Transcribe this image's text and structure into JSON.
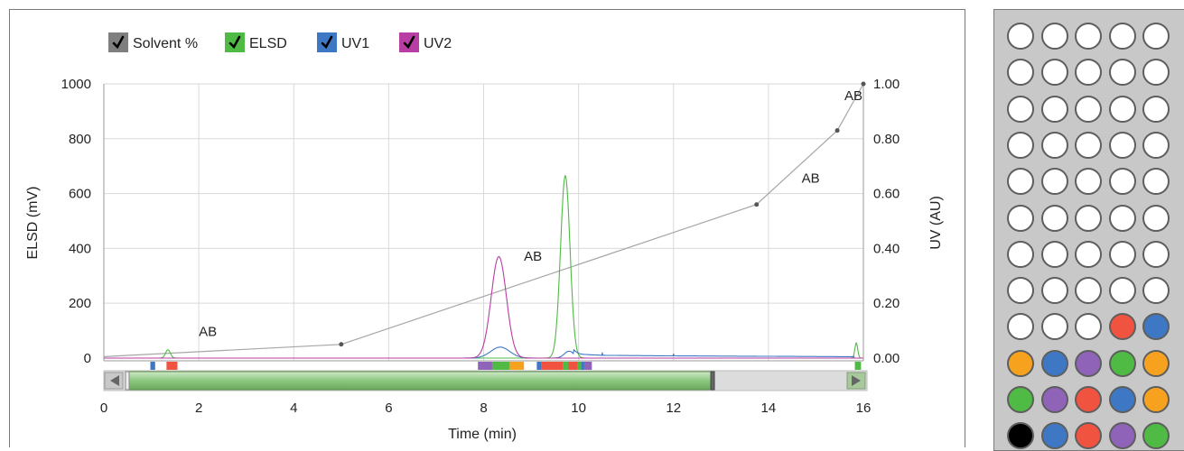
{
  "chart_data": {
    "type": "line",
    "xlabel": "Time (min)",
    "ylabel_left": "ELSD (mV)",
    "ylabel_right": "UV (AU)",
    "xlim": [
      0,
      16
    ],
    "ylim_left": [
      -10,
      1000
    ],
    "ylim_right": [
      -0.01,
      1.0
    ],
    "x_ticks": [
      "0",
      "2",
      "4",
      "6",
      "8",
      "10",
      "12",
      "14",
      "16"
    ],
    "y_ticks_left": [
      "0",
      "200",
      "400",
      "600",
      "800",
      "1000"
    ],
    "y_ticks_right": [
      "0.00",
      "0.20",
      "0.40",
      "0.60",
      "0.80",
      "1.00"
    ],
    "grid": true,
    "legend": [
      {
        "name": "Solvent %",
        "color": "#7f7f7f"
      },
      {
        "name": "ELSD",
        "color": "#4fba44"
      },
      {
        "name": "UV1",
        "color": "#3e78c4"
      },
      {
        "name": "UV2",
        "color": "#b83ea3"
      }
    ],
    "series": [
      {
        "name": "Solvent %",
        "color": "#a6a6a6",
        "points": [
          [
            0,
            5
          ],
          [
            5,
            50
          ],
          [
            13.75,
            560
          ],
          [
            15.45,
            830
          ],
          [
            16,
            1000
          ]
        ],
        "markers": [
          [
            5,
            50
          ],
          [
            13.75,
            560
          ],
          [
            15.45,
            830
          ],
          [
            16,
            1000
          ]
        ]
      },
      {
        "name": "ELSD",
        "color": "#4fba44",
        "peaks": [
          {
            "x": 1.35,
            "y": 30,
            "width": 0.05
          },
          {
            "x": 9.72,
            "y": 665,
            "width": 0.1
          },
          {
            "x": 15.85,
            "y": 55,
            "width": 0.03
          }
        ]
      },
      {
        "name": "UV1",
        "color": "#3e78c4",
        "peaks": [
          {
            "x": 8.35,
            "y": 40,
            "width": 0.2
          },
          {
            "x": 9.8,
            "y": 25,
            "width": 0.1
          }
        ],
        "baseline_segments": [
          [
            9.9,
            15
          ],
          [
            10.5,
            10
          ],
          [
            12,
            8
          ],
          [
            15.8,
            5
          ]
        ]
      },
      {
        "name": "UV2",
        "color": "#b83ea3",
        "peaks": [
          {
            "x": 8.32,
            "y": 370,
            "width": 0.16
          }
        ]
      }
    ],
    "annotations": [
      {
        "text": "AB",
        "x": 2.0,
        "y": 80
      },
      {
        "text": "AB",
        "x": 8.85,
        "y": 355
      },
      {
        "text": "AB",
        "x": 14.7,
        "y": 640
      },
      {
        "text": "AB",
        "x": 15.6,
        "y": 940
      }
    ],
    "fractions": [
      {
        "start": 0.98,
        "end": 1.08,
        "color": "#3e78c4"
      },
      {
        "start": 1.32,
        "end": 1.55,
        "color": "#f0533f"
      },
      {
        "start": 7.88,
        "end": 8.18,
        "color": "#8e63b8"
      },
      {
        "start": 8.18,
        "end": 8.55,
        "color": "#4fba44"
      },
      {
        "start": 8.55,
        "end": 8.85,
        "color": "#f7a21f"
      },
      {
        "start": 9.12,
        "end": 9.22,
        "color": "#3e78c4"
      },
      {
        "start": 9.22,
        "end": 9.68,
        "color": "#f0533f"
      },
      {
        "start": 9.68,
        "end": 9.78,
        "color": "#4fba44"
      },
      {
        "start": 9.78,
        "end": 9.98,
        "color": "#f0533f"
      },
      {
        "start": 9.98,
        "end": 10.05,
        "color": "#4fba44"
      },
      {
        "start": 10.05,
        "end": 10.12,
        "color": "#3e78c4"
      },
      {
        "start": 10.12,
        "end": 10.28,
        "color": "#8e63b8"
      },
      {
        "start": 15.82,
        "end": 15.95,
        "color": "#4fba44"
      }
    ],
    "scroll_window": {
      "start": 0.0,
      "end": 12.5
    }
  },
  "tray": {
    "wells": [
      [
        "empty",
        "empty",
        "empty",
        "empty",
        "empty"
      ],
      [
        "empty",
        "empty",
        "empty",
        "empty",
        "empty"
      ],
      [
        "empty",
        "empty",
        "empty",
        "empty",
        "empty"
      ],
      [
        "empty",
        "empty",
        "empty",
        "empty",
        "empty"
      ],
      [
        "empty",
        "empty",
        "empty",
        "empty",
        "empty"
      ],
      [
        "empty",
        "empty",
        "empty",
        "empty",
        "empty"
      ],
      [
        "empty",
        "empty",
        "empty",
        "empty",
        "empty"
      ],
      [
        "empty",
        "empty",
        "empty",
        "empty",
        "empty"
      ],
      [
        "empty",
        "empty",
        "empty",
        "red",
        "blue"
      ],
      [
        "orange",
        "blue",
        "purple",
        "green",
        "orange"
      ],
      [
        "green",
        "purple",
        "red",
        "blue",
        "orange"
      ],
      [
        "black",
        "blue",
        "red",
        "purple",
        "green"
      ]
    ],
    "colors": {
      "empty": "#ffffff",
      "red": "#f0533f",
      "blue": "#3e78c4",
      "purple": "#8e63b8",
      "green": "#4fba44",
      "orange": "#f7a21f",
      "black": "#000000"
    }
  }
}
